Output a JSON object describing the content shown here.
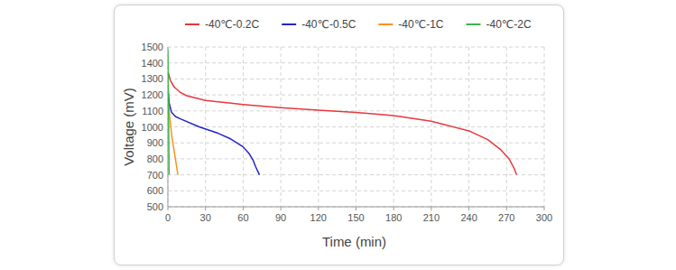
{
  "chart_data": {
    "type": "line",
    "x_label": "Time (min)",
    "y_label": "Voltage (mV)",
    "xlim": [
      0,
      300
    ],
    "xticks": [
      0,
      30,
      60,
      90,
      120,
      150,
      180,
      210,
      240,
      270,
      300
    ],
    "ylim": [
      500,
      1500
    ],
    "yticks": [
      500,
      600,
      700,
      800,
      900,
      1000,
      1100,
      1200,
      1300,
      1400,
      1500
    ],
    "grid": true,
    "legend": "top",
    "series": [
      {
        "name": "-40℃-0.2C",
        "color": "#e8383d",
        "x": [
          0,
          2,
          5,
          10,
          15,
          30,
          60,
          90,
          120,
          150,
          180,
          210,
          240,
          255,
          265,
          272,
          276,
          278
        ],
        "values": [
          1350,
          1290,
          1250,
          1215,
          1195,
          1165,
          1140,
          1120,
          1105,
          1090,
          1070,
          1035,
          975,
          920,
          860,
          800,
          740,
          700
        ]
      },
      {
        "name": "-40℃-0.5C",
        "color": "#2424cc",
        "x": [
          0,
          1,
          3,
          6,
          10,
          25,
          40,
          50,
          60,
          65,
          68,
          70,
          73
        ],
        "values": [
          1250,
          1150,
          1090,
          1065,
          1050,
          1000,
          960,
          925,
          875,
          830,
          790,
          750,
          700
        ]
      },
      {
        "name": "-40℃-1C",
        "color": "#f7941d",
        "x": [
          0,
          1,
          3,
          5,
          8
        ],
        "values": [
          1180,
          1100,
          950,
          850,
          700
        ]
      },
      {
        "name": "-40℃-2C",
        "color": "#3cb44b",
        "x": [
          0,
          0.3,
          0.6,
          1
        ],
        "values": [
          1480,
          1250,
          1000,
          700
        ]
      }
    ]
  }
}
